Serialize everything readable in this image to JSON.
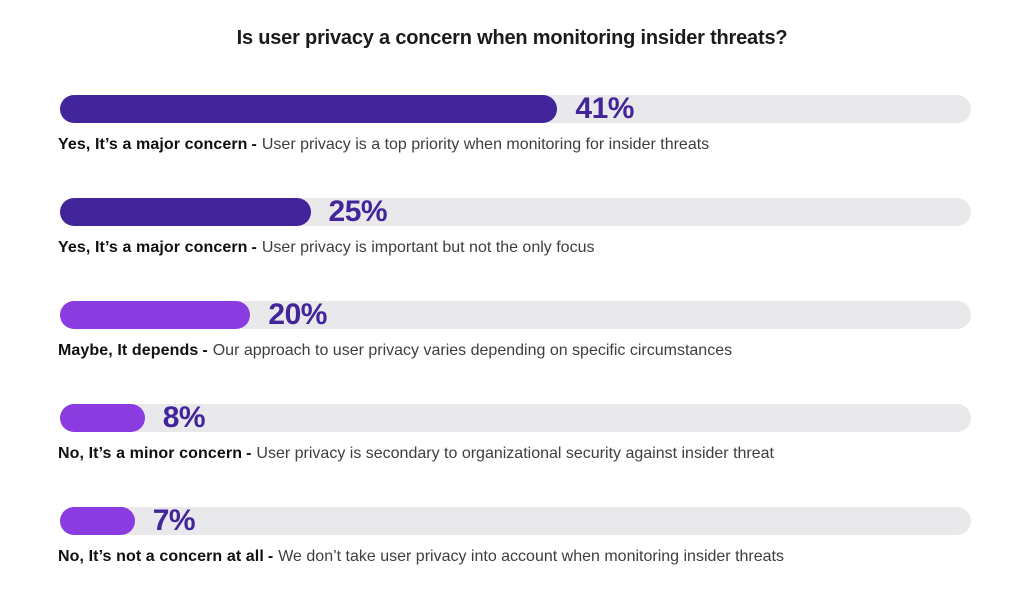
{
  "title": "Is user privacy a concern when monitoring insider threats?",
  "separator": "-",
  "colors": {
    "bar_dark_purple": "#42249b",
    "bar_light_violet": "#8a3ce0",
    "track_gray": "#e9e8ea",
    "percent_text": "#42249b"
  },
  "chart_data": {
    "type": "bar",
    "orientation": "horizontal",
    "title": "Is user privacy a concern when monitoring insider threats?",
    "unit": "%",
    "categories": [
      "Yes, It’s a major concern",
      "Yes, It’s a major concern",
      "Maybe, It depends",
      "No, It’s a minor concern",
      "No, It’s not a concern at all"
    ],
    "values": [
      41,
      25,
      20,
      8,
      7
    ],
    "legend": "none",
    "grid": false,
    "rows": [
      {
        "value": 41,
        "value_label": "41%",
        "fill_pct": 54.6,
        "color": "#42249b",
        "label_bold": "Yes, It’s a major concern",
        "label_desc": "User privacy is a top priority when monitoring for insider threats"
      },
      {
        "value": 25,
        "value_label": "25%",
        "fill_pct": 27.5,
        "color": "#42249b",
        "label_bold": "Yes, It’s a major concern",
        "label_desc": "User privacy is important but not the only focus"
      },
      {
        "value": 20,
        "value_label": "20%",
        "fill_pct": 20.9,
        "color": "#8a3ce0",
        "label_bold": "Maybe, It depends",
        "label_desc": "Our approach to user privacy varies depending on specific circumstances"
      },
      {
        "value": 8,
        "value_label": "8%",
        "fill_pct": 9.3,
        "color": "#8a3ce0",
        "label_bold": "No, It’s a minor concern",
        "label_desc": "User privacy is secondary to organizational security against insider threat"
      },
      {
        "value": 7,
        "value_label": "7%",
        "fill_pct": 8.2,
        "color": "#8a3ce0",
        "label_bold": "No, It’s not a concern at all",
        "label_desc": "We don’t take user privacy into account when monitoring insider threats"
      }
    ]
  }
}
